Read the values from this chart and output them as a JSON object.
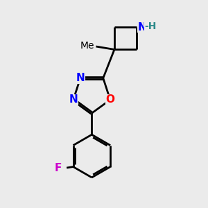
{
  "background_color": "#ebebeb",
  "bond_color": "#000000",
  "bond_width": 2.0,
  "atom_colors": {
    "N": "#0000ff",
    "O": "#ff0000",
    "F": "#cc00cc",
    "NH": "#2e8b8b",
    "H": "#2e8b8b",
    "C": "#000000"
  },
  "font_size_atom": 11,
  "font_size_label": 10,
  "font_size_small": 9
}
